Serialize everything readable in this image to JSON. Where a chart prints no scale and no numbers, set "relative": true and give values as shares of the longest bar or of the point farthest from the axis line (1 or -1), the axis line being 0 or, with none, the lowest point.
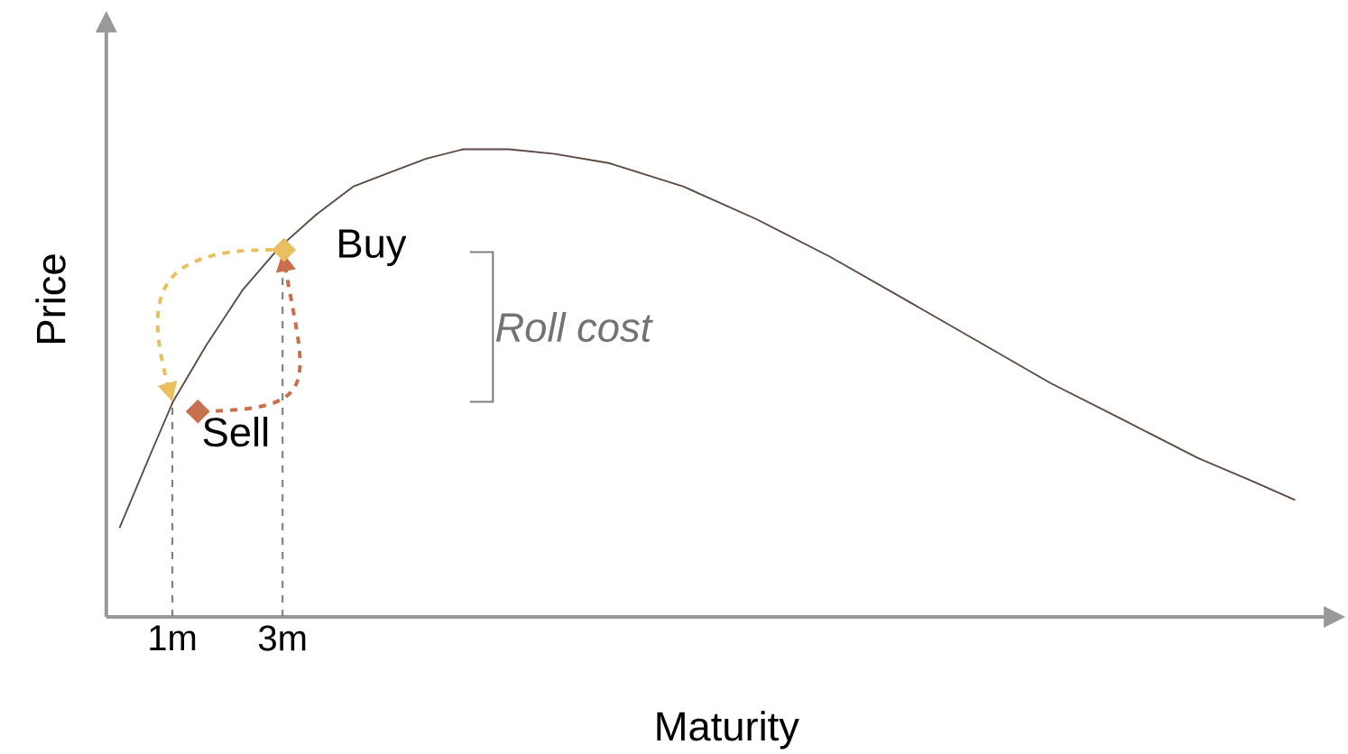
{
  "chart_data": {
    "type": "line",
    "relative": true,
    "xlabel": "Maturity",
    "ylabel": "Price",
    "series": [
      {
        "color": "#5a4a42",
        "x": [
          0.04,
          0.61,
          1.01,
          1.61,
          2.28,
          2.94,
          3.61,
          4.28,
          4.94,
          5.61,
          6.28,
          7.11,
          7.94,
          8.94,
          10.28,
          11.61,
          12.94,
          14.28,
          15.61,
          16.94,
          18.28,
          19.61,
          20.61,
          21.38
        ],
        "values": [
          0.19,
          0.35,
          0.46,
          0.58,
          0.7,
          0.79,
          0.86,
          0.92,
          0.95,
          0.98,
          1.0,
          1.0,
          0.99,
          0.97,
          0.92,
          0.85,
          0.77,
          0.68,
          0.59,
          0.5,
          0.42,
          0.34,
          0.29,
          0.25
        ]
      }
    ],
    "xlim": [
      -0.2,
      21.9
    ],
    "xticks": [
      {
        "value": 1,
        "label": "1m"
      },
      {
        "value": 3,
        "label": "3m"
      }
    ],
    "ref_lines": [
      {
        "axis": "x",
        "value": 1,
        "color": "#808080",
        "line_style": "dashed"
      },
      {
        "axis": "x",
        "value": 3,
        "color": "#808080",
        "line_style": "dashed"
      }
    ],
    "annotations": [
      {
        "text": "Buy",
        "x": 3,
        "y": 0.78
      },
      {
        "text": "Sell",
        "x": 1,
        "y": 0.46
      },
      "Roll cost"
    ],
    "marker": "none",
    "line_style": "solid"
  }
}
